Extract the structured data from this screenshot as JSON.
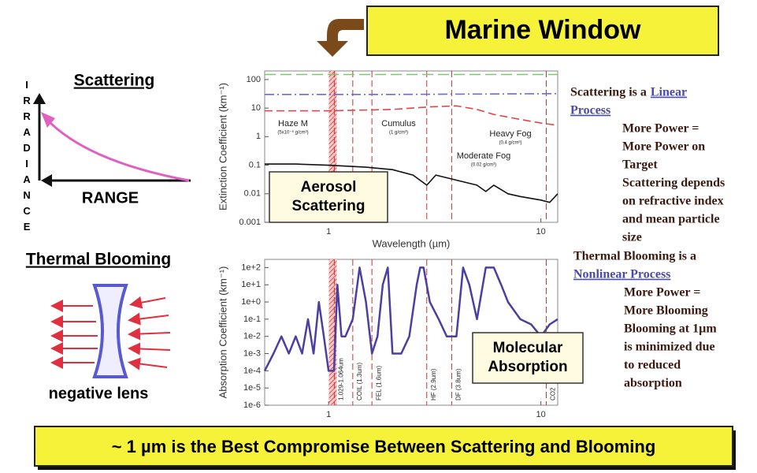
{
  "title": "Marine Window",
  "scattering": {
    "title": "Scattering",
    "y_label": "IRRADIANCE",
    "x_label": "RANGE"
  },
  "blooming": {
    "title": "Thermal Blooming",
    "caption": "negative lens"
  },
  "chart_data": [
    {
      "type": "line",
      "x_label": "Wavelength (µm)",
      "y_label": "Extinction Coefficient (km⁻¹)",
      "xlog": true,
      "ylog": true,
      "xlim": [
        0.5,
        12
      ],
      "ylim": [
        0.001,
        200
      ],
      "xticks": [
        1,
        10
      ],
      "yticks": [
        0.001,
        0.01,
        0.1,
        1,
        10,
        100
      ],
      "box_label": [
        "Aerosol",
        "Scattering"
      ],
      "series": [
        {
          "name": "Haze M",
          "density": "(5x10⁻⁶ g/cm³)",
          "color": "#111111",
          "dash": "none",
          "x": [
            0.5,
            0.7,
            1,
            1.5,
            2,
            2.5,
            2.9,
            3.2,
            4,
            5,
            5.5,
            6,
            7,
            8,
            10,
            11,
            12
          ],
          "values": [
            0.11,
            0.11,
            0.1,
            0.085,
            0.07,
            0.045,
            0.02,
            0.045,
            0.03,
            0.02,
            0.012,
            0.02,
            0.01,
            0.008,
            0.006,
            0.005,
            0.01
          ]
        },
        {
          "name": "Cumulus",
          "density": "(1 g/cm³)",
          "color": "#7cc86a",
          "dash": "14 6",
          "x": [
            0.5,
            2,
            5,
            12
          ],
          "values": [
            150,
            150,
            150,
            150
          ]
        },
        {
          "name": "Heavy Fog",
          "density": "(0.4 g/cm³)",
          "color": "#6a6ad8",
          "dash": "12 4 2 4",
          "x": [
            0.5,
            2,
            5,
            12
          ],
          "values": [
            30,
            30,
            31,
            32
          ]
        },
        {
          "name": "Moderate Fog",
          "density": "(0.02 g/cm³)",
          "color": "#e04848",
          "dash": "10 5",
          "x": [
            0.5,
            1,
            2,
            3,
            4,
            5,
            6,
            8,
            10,
            12
          ],
          "values": [
            8,
            8,
            9,
            11,
            12,
            9,
            6,
            4,
            3,
            2.5
          ]
        }
      ]
    },
    {
      "type": "line",
      "y_label": "Absorption Coefficient (km⁻¹)",
      "xlog": true,
      "ylog": true,
      "xlim": [
        0.5,
        12
      ],
      "ylim": [
        1e-06,
        300
      ],
      "xticks": [
        1,
        10
      ],
      "yticks": [
        {
          "value": 100,
          "label": "1e+2"
        },
        {
          "value": 10,
          "label": "1e+1"
        },
        {
          "value": 1,
          "label": "1e+0"
        },
        {
          "value": 0.1,
          "label": "1e-1"
        },
        {
          "value": 0.01,
          "label": "1e-2"
        },
        {
          "value": 0.001,
          "label": "1e-3"
        },
        {
          "value": 0.0001,
          "label": "1e-4"
        },
        {
          "value": 1e-05,
          "label": "1e-5"
        },
        {
          "value": 1e-06,
          "label": "1e-6"
        }
      ],
      "box_label": [
        "Molecular",
        "Absorption"
      ],
      "band": [
        1.029,
        1.064
      ],
      "markers": [
        {
          "x": 1.064,
          "label": "1.029-1.064um"
        },
        {
          "x": 1.3,
          "label": "COIL (1.3um)"
        },
        {
          "x": 1.6,
          "label": "FEL (1.6um)"
        },
        {
          "x": 2.9,
          "label": "HF (2.9um)"
        },
        {
          "x": 3.8,
          "label": "DF (3.8um)"
        },
        {
          "x": 10.6,
          "label": "CO2"
        }
      ],
      "series": [
        {
          "color": "#4b3fa0",
          "x": [
            0.5,
            0.55,
            0.6,
            0.65,
            0.7,
            0.75,
            0.8,
            0.85,
            0.9,
            0.95,
            1.0,
            1.06,
            1.1,
            1.15,
            1.2,
            1.3,
            1.4,
            1.5,
            1.6,
            1.7,
            1.8,
            1.9,
            2.0,
            2.2,
            2.4,
            2.6,
            2.7,
            2.8,
            3.0,
            3.3,
            3.6,
            4.0,
            4.3,
            4.6,
            5.0,
            5.5,
            6.0,
            6.5,
            7.0,
            8.0,
            9.0,
            10,
            11,
            12
          ],
          "values": [
            0.0001,
            0.001,
            0.01,
            0.001,
            0.01,
            0.001,
            0.1,
            0.001,
            1,
            0.01,
            0.0001,
            0.0001,
            10,
            0.01,
            0.01,
            0.1,
            100,
            1,
            0.001,
            0.01,
            10,
            100,
            0.001,
            0.001,
            0.01,
            10,
            100,
            100,
            1,
            0.1,
            0.01,
            0.01,
            100,
            10,
            0.1,
            100,
            100,
            10,
            1,
            0.1,
            0.05,
            0.01,
            0.05,
            0.1
          ]
        }
      ]
    }
  ],
  "notes": [
    {
      "lead": "Scattering is a",
      "link": [
        "Linear",
        "Process"
      ],
      "lines": [
        "More Power =",
        "More Power on",
        "Target",
        "Scattering depends",
        "on refractive index",
        "and mean particle",
        "size"
      ]
    },
    {
      "lead": "Thermal Blooming is a",
      "link": [
        "Nonlinear Process"
      ],
      "lines": [
        "More Power =",
        "More Blooming",
        "Blooming at 1µm",
        "is minimized due",
        "to reduced",
        "absorption"
      ]
    }
  ],
  "footer": "~ 1 µm is the Best Compromise Between Scattering and Blooming"
}
